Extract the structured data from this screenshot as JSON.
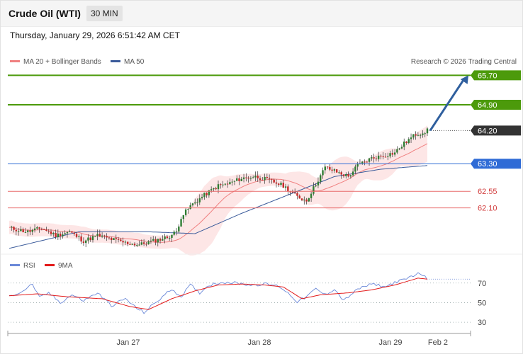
{
  "header": {
    "title": "Crude Oil (WTI)",
    "timeframe": "30 MIN",
    "timestamp": "Thursday, January 29, 2026 6:51:42 AM CET"
  },
  "credit": "Research © 2026 Trading Central",
  "colors": {
    "resistance": "#4c9a0b",
    "pivot": "#2f6bd6",
    "support": "#e86b6b",
    "last_price": "#333333",
    "ma20": "#f08080",
    "bands_fill": "#fde2e2",
    "ma50": "#3a5a9a",
    "rsi": "#6a88d8",
    "rsi_ma": "#e31a1a",
    "candle_up": "#2e7d32",
    "candle_down": "#c62828",
    "arrow": "#2f5f9e"
  },
  "chart_data": [
    {
      "type": "candlestick",
      "name": "price",
      "legend": [
        {
          "label": "MA 20 + Bollinger Bands",
          "color": "#f08080"
        },
        {
          "label": "MA 50",
          "color": "#3a5a9a"
        }
      ],
      "ylim": [
        60.9,
        65.9
      ],
      "x_ticks": [
        "Jan 27",
        "Jan 28",
        "Jan 29",
        "Feb 2"
      ],
      "levels": [
        {
          "value": 65.7,
          "label": "65.70",
          "kind": "resistance"
        },
        {
          "value": 64.9,
          "label": "64.90",
          "kind": "resistance"
        },
        {
          "value": 64.2,
          "label": "64.20",
          "kind": "last"
        },
        {
          "value": 63.3,
          "label": "63.30",
          "kind": "pivot"
        },
        {
          "value": 62.55,
          "label": "62.55",
          "kind": "support"
        },
        {
          "value": 62.1,
          "label": "62.10",
          "kind": "support"
        }
      ],
      "close_path": [
        [
          0,
          61.55
        ],
        [
          8,
          61.45
        ],
        [
          14,
          61.55
        ],
        [
          20,
          61.35
        ],
        [
          26,
          61.45
        ],
        [
          32,
          61.2
        ],
        [
          38,
          61.35
        ],
        [
          44,
          61.25
        ],
        [
          50,
          61.15
        ],
        [
          56,
          61.1
        ],
        [
          62,
          61.2
        ],
        [
          68,
          61.3
        ],
        [
          72,
          61.45
        ],
        [
          74,
          61.85
        ],
        [
          78,
          62.15
        ],
        [
          84,
          62.45
        ],
        [
          90,
          62.7
        ],
        [
          94,
          62.75
        ],
        [
          100,
          62.9
        ],
        [
          106,
          62.95
        ],
        [
          112,
          62.85
        ],
        [
          118,
          62.7
        ],
        [
          124,
          62.4
        ],
        [
          128,
          62.3
        ],
        [
          132,
          62.75
        ],
        [
          136,
          63.2
        ],
        [
          140,
          63.1
        ],
        [
          146,
          62.95
        ],
        [
          150,
          63.25
        ],
        [
          156,
          63.45
        ],
        [
          160,
          63.5
        ],
        [
          166,
          63.6
        ],
        [
          170,
          63.85
        ],
        [
          175,
          64.1
        ],
        [
          178,
          64.15
        ],
        [
          180,
          64.2
        ]
      ],
      "ma50_path": [
        [
          0,
          61.0
        ],
        [
          30,
          61.45
        ],
        [
          60,
          61.45
        ],
        [
          80,
          61.4
        ],
        [
          100,
          61.95
        ],
        [
          120,
          62.45
        ],
        [
          140,
          62.95
        ],
        [
          160,
          63.15
        ],
        [
          180,
          63.25
        ]
      ],
      "forecast_arrow": {
        "from": 64.2,
        "to": 65.7
      }
    },
    {
      "type": "line",
      "name": "RSI",
      "legend": [
        {
          "label": "RSI",
          "color": "#6a88d8"
        },
        {
          "label": "9MA",
          "color": "#e31a1a"
        }
      ],
      "ylim": [
        20,
        85
      ],
      "y_ticks": [
        "70",
        "50",
        "30"
      ],
      "rsi_path": [
        [
          0,
          56
        ],
        [
          6,
          62
        ],
        [
          10,
          69
        ],
        [
          13,
          55
        ],
        [
          17,
          60
        ],
        [
          22,
          50
        ],
        [
          27,
          58
        ],
        [
          32,
          52
        ],
        [
          38,
          60
        ],
        [
          44,
          47
        ],
        [
          50,
          54
        ],
        [
          55,
          44
        ],
        [
          58,
          40
        ],
        [
          62,
          48
        ],
        [
          67,
          58
        ],
        [
          70,
          64
        ],
        [
          74,
          56
        ],
        [
          78,
          68
        ],
        [
          82,
          60
        ],
        [
          86,
          68
        ],
        [
          92,
          71
        ],
        [
          98,
          70
        ],
        [
          104,
          68
        ],
        [
          110,
          69
        ],
        [
          116,
          67
        ],
        [
          120,
          60
        ],
        [
          124,
          51
        ],
        [
          128,
          56
        ],
        [
          132,
          64
        ],
        [
          136,
          58
        ],
        [
          140,
          64
        ],
        [
          144,
          52
        ],
        [
          148,
          60
        ],
        [
          152,
          66
        ],
        [
          157,
          69
        ],
        [
          162,
          66
        ],
        [
          166,
          71
        ],
        [
          170,
          73
        ],
        [
          174,
          78
        ],
        [
          177,
          80
        ],
        [
          180,
          74
        ]
      ],
      "rsi_ma_path": [
        [
          0,
          57
        ],
        [
          12,
          59
        ],
        [
          25,
          56
        ],
        [
          40,
          54
        ],
        [
          52,
          46
        ],
        [
          60,
          43
        ],
        [
          70,
          54
        ],
        [
          80,
          62
        ],
        [
          90,
          68
        ],
        [
          100,
          69
        ],
        [
          110,
          68
        ],
        [
          118,
          66
        ],
        [
          126,
          54
        ],
        [
          134,
          58
        ],
        [
          146,
          60
        ],
        [
          156,
          63
        ],
        [
          166,
          68
        ],
        [
          176,
          75
        ],
        [
          180,
          74
        ]
      ]
    }
  ]
}
